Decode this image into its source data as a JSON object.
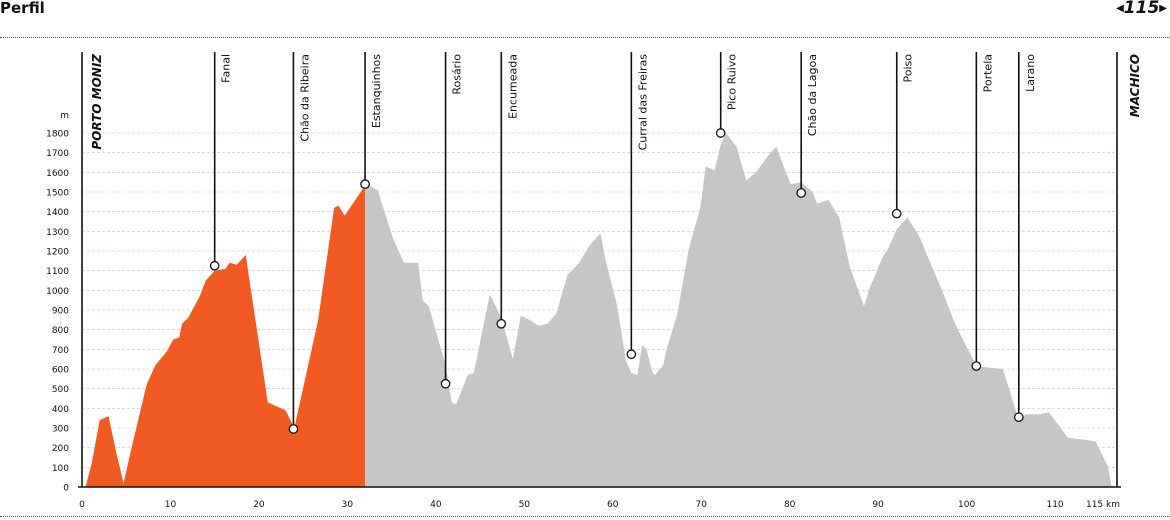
{
  "header": {
    "title": "Perfil",
    "page": "115"
  },
  "colors": {
    "ridden": "#f15a22",
    "remaining": "#c6c6c6",
    "grid": "#e0b7b7",
    "line": "#111111"
  },
  "chart_data": {
    "type": "area",
    "y_unit": "m",
    "x_unit": "115 km",
    "xlim": [
      0,
      117
    ],
    "ylim": [
      0,
      1800
    ],
    "x_ticks": [
      0,
      10,
      20,
      30,
      40,
      50,
      60,
      70,
      80,
      90,
      100,
      110
    ],
    "y_ticks": [
      0,
      100,
      200,
      300,
      400,
      500,
      600,
      700,
      800,
      900,
      1000,
      1100,
      1200,
      1300,
      1400,
      1500,
      1600,
      1700,
      1800
    ],
    "split_km": 32,
    "start": "PORTO MONIZ",
    "end": "MACHICO",
    "profile": [
      [
        0.4,
        0
      ],
      [
        1.1,
        120
      ],
      [
        2,
        340
      ],
      [
        3,
        360
      ],
      [
        4,
        150
      ],
      [
        4.7,
        20
      ],
      [
        5.5,
        180
      ],
      [
        7.3,
        520
      ],
      [
        8.3,
        620
      ],
      [
        9.6,
        690
      ],
      [
        10.3,
        750
      ],
      [
        11,
        760
      ],
      [
        11.3,
        830
      ],
      [
        12,
        860
      ],
      [
        13.3,
        970
      ],
      [
        14,
        1050
      ],
      [
        15,
        1100
      ],
      [
        16.2,
        1110
      ],
      [
        16.7,
        1140
      ],
      [
        17.5,
        1130
      ],
      [
        18.5,
        1180
      ],
      [
        19.7,
        820
      ],
      [
        21,
        430
      ],
      [
        22,
        410
      ],
      [
        23,
        390
      ],
      [
        24,
        300
      ],
      [
        26.7,
        850
      ],
      [
        28.5,
        1420
      ],
      [
        29,
        1430
      ],
      [
        29.7,
        1380
      ],
      [
        31.8,
        1520
      ],
      [
        32,
        1545
      ],
      [
        33.4,
        1510
      ],
      [
        35.2,
        1260
      ],
      [
        36.4,
        1140
      ],
      [
        38,
        1140
      ],
      [
        38.5,
        950
      ],
      [
        39.2,
        920
      ],
      [
        41.1,
        620
      ],
      [
        41.8,
        430
      ],
      [
        42.3,
        420
      ],
      [
        43.6,
        570
      ],
      [
        44.3,
        580
      ],
      [
        46.1,
        980
      ],
      [
        47.4,
        860
      ],
      [
        48.4,
        700
      ],
      [
        48.7,
        650
      ],
      [
        49.6,
        870
      ],
      [
        50.6,
        850
      ],
      [
        51.6,
        820
      ],
      [
        52.6,
        830
      ],
      [
        53.6,
        880
      ],
      [
        54.9,
        1080
      ],
      [
        56.2,
        1140
      ],
      [
        57.4,
        1230
      ],
      [
        58.6,
        1290
      ],
      [
        59.2,
        1150
      ],
      [
        60.5,
        920
      ],
      [
        61.5,
        640
      ],
      [
        62.1,
        580
      ],
      [
        62.8,
        570
      ],
      [
        63.3,
        720
      ],
      [
        63.8,
        700
      ],
      [
        64.5,
        580
      ],
      [
        64.8,
        570
      ],
      [
        65.7,
        620
      ],
      [
        66.1,
        700
      ],
      [
        67.3,
        880
      ],
      [
        68.6,
        1210
      ],
      [
        69.9,
        1420
      ],
      [
        70.5,
        1630
      ],
      [
        71.5,
        1610
      ],
      [
        72.2,
        1740
      ],
      [
        72.8,
        1800
      ],
      [
        74,
        1730
      ],
      [
        74.5,
        1650
      ],
      [
        75.1,
        1560
      ],
      [
        76.2,
        1600
      ],
      [
        77,
        1650
      ],
      [
        77.8,
        1700
      ],
      [
        78.5,
        1730
      ],
      [
        79.4,
        1620
      ],
      [
        80.1,
        1540
      ],
      [
        81.3,
        1550
      ],
      [
        82.6,
        1500
      ],
      [
        83.1,
        1440
      ],
      [
        84.4,
        1460
      ],
      [
        85.6,
        1370
      ],
      [
        86.8,
        1120
      ],
      [
        88.4,
        920
      ],
      [
        89.1,
        1020
      ],
      [
        89.7,
        1080
      ],
      [
        90.4,
        1160
      ],
      [
        91.1,
        1210
      ],
      [
        92.1,
        1310
      ],
      [
        93.3,
        1370
      ],
      [
        94.6,
        1280
      ],
      [
        96,
        1130
      ],
      [
        97.4,
        980
      ],
      [
        98.6,
        840
      ],
      [
        99.9,
        720
      ],
      [
        101.1,
        620
      ],
      [
        101.9,
        610
      ],
      [
        104.1,
        600
      ],
      [
        105.9,
        340
      ],
      [
        106.7,
        370
      ],
      [
        108.3,
        370
      ],
      [
        109.3,
        380
      ],
      [
        110.3,
        320
      ],
      [
        111.4,
        250
      ],
      [
        113.4,
        240
      ],
      [
        114.6,
        230
      ],
      [
        116,
        100
      ],
      [
        116.4,
        0
      ]
    ],
    "waypoints": [
      {
        "label": "Fanal",
        "km": 15,
        "alt": 1125
      },
      {
        "label": "Chão da Ribeira",
        "km": 23.9,
        "alt": 295
      },
      {
        "label": "Estanquinhos",
        "km": 32,
        "alt": 1540
      },
      {
        "label": "Rosário",
        "km": 41.1,
        "alt": 525
      },
      {
        "label": "Encumeada",
        "km": 47.4,
        "alt": 830
      },
      {
        "label": "Curral das Freiras",
        "km": 62.1,
        "alt": 675
      },
      {
        "label": "Pico Ruivo",
        "km": 72.2,
        "alt": 1800
      },
      {
        "label": "Chão da Lagoa",
        "km": 81.3,
        "alt": 1495
      },
      {
        "label": "Poiso",
        "km": 92.1,
        "alt": 1390
      },
      {
        "label": "Portela",
        "km": 101.1,
        "alt": 615
      },
      {
        "label": "Larano",
        "km": 105.9,
        "alt": 355
      }
    ]
  }
}
